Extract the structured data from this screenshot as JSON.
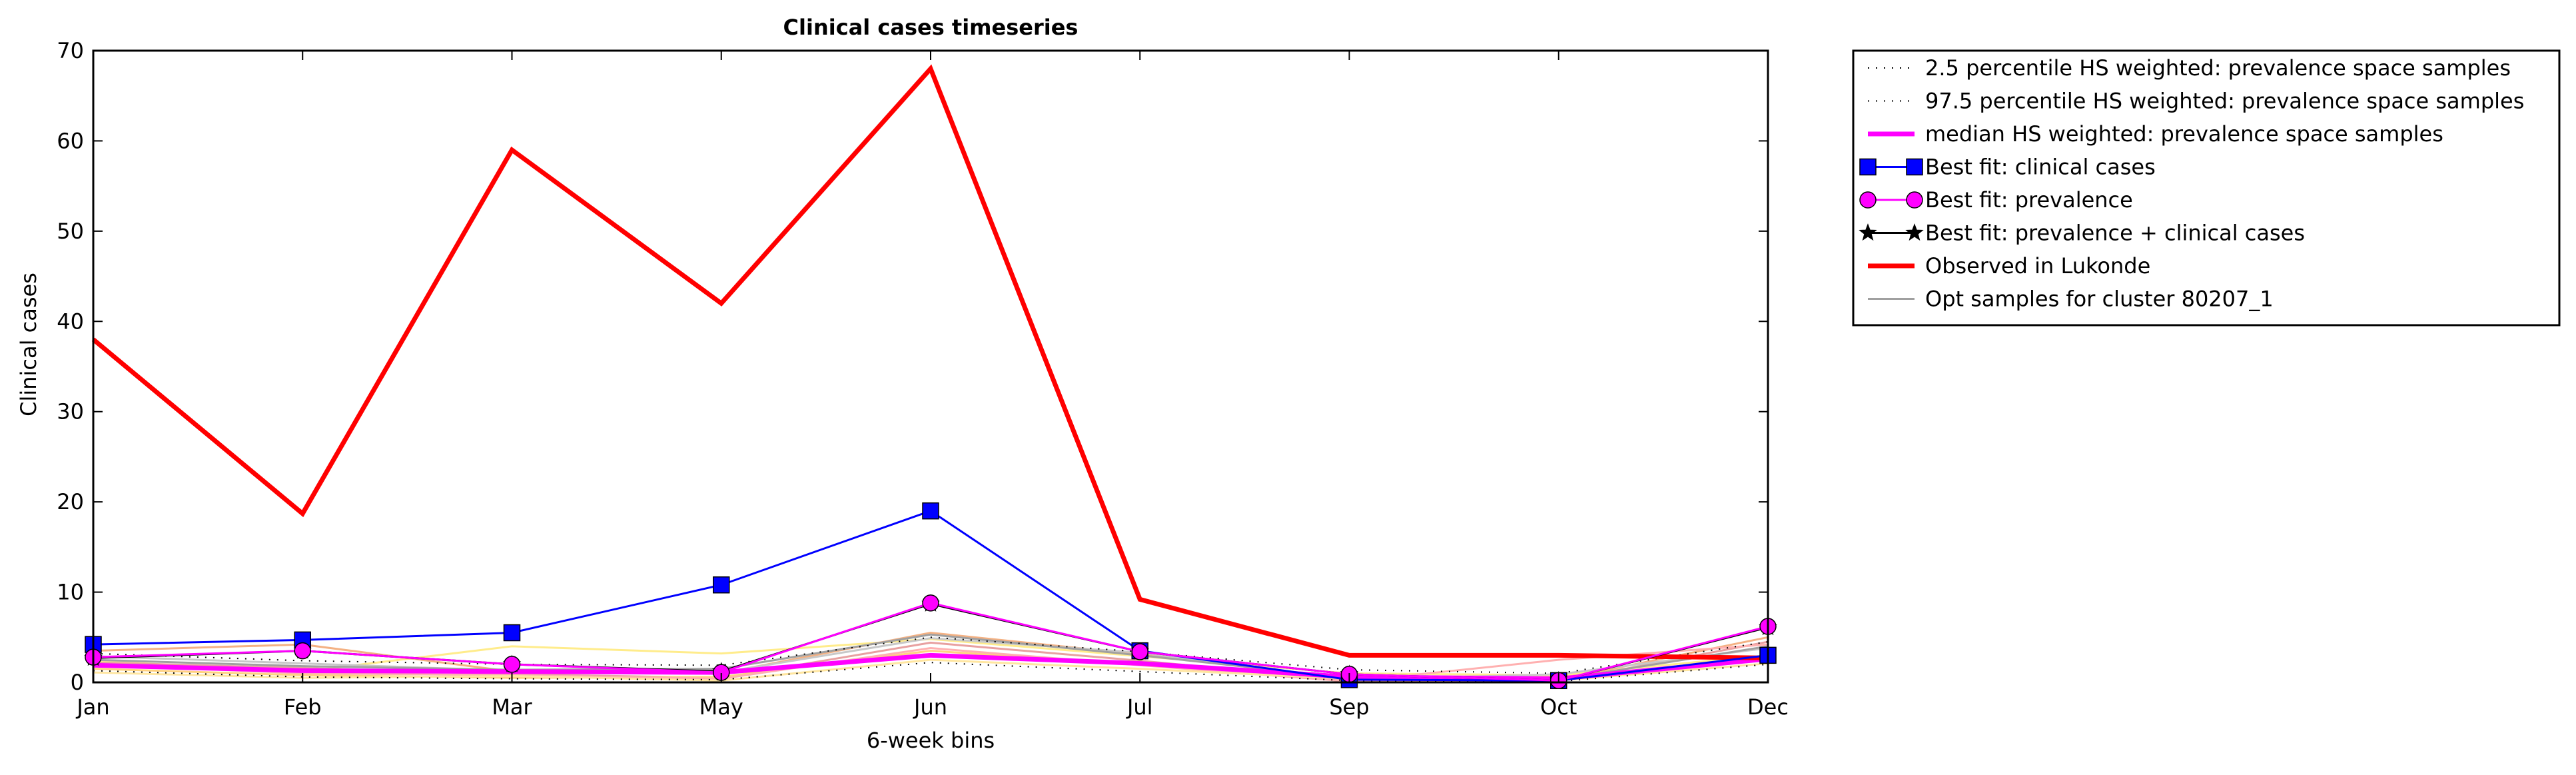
{
  "chart_data": {
    "type": "line",
    "title": "Clinical cases timeseries",
    "xlabel": "6-week bins",
    "ylabel": "Clinical cases",
    "categories": [
      "Jan",
      "Feb",
      "Mar",
      "May",
      "Jun",
      "Jul",
      "Sep",
      "Oct",
      "Dec"
    ],
    "ylim": [
      0,
      70
    ],
    "yticks": [
      "0",
      "10",
      "20",
      "30",
      "40",
      "50",
      "60",
      "70"
    ],
    "grid": false,
    "legend_position": "outside-top-right",
    "legend": [
      {
        "label": "2.5 percentile HS weighted: prevalence space samples"
      },
      {
        "label": "97.5 percentile HS weighted: prevalence space samples"
      },
      {
        "label": "median HS weighted: prevalence space samples"
      },
      {
        "label": "Best fit: clinical cases"
      },
      {
        "label": "Best fit: prevalence"
      },
      {
        "label": "Best fit: prevalence + clinical cases"
      },
      {
        "label": "Observed in Lukonde"
      },
      {
        "label": "Opt samples for cluster 80207_1"
      }
    ],
    "series": [
      {
        "name": "Observed in Lukonde",
        "color": "#ff0000",
        "style": "thick-line",
        "values": [
          38,
          18.7,
          59,
          42,
          68,
          9.2,
          3,
          3,
          2.7
        ]
      },
      {
        "name": "Best fit: clinical cases",
        "color": "#0000ff",
        "marker": "square",
        "values": [
          4.2,
          4.7,
          5.5,
          10.8,
          19,
          3.5,
          0.3,
          0.2,
          3
        ]
      },
      {
        "name": "Best fit: prevalence",
        "color": "#ff00ff",
        "marker": "circle",
        "values": [
          2.8,
          3.5,
          2,
          1.1,
          8.8,
          3.4,
          0.9,
          0.2,
          6.2
        ]
      },
      {
        "name": "Best fit: prevalence + clinical cases",
        "color": "#000000",
        "marker": "star",
        "values": [
          2.7,
          3.5,
          2,
          1.2,
          8.7,
          3.4,
          0.9,
          0.2,
          6.1
        ]
      },
      {
        "name": "median HS weighted: prevalence space samples",
        "color": "#ff00ff",
        "style": "thick-line",
        "values": [
          1.9,
          1.3,
          1.2,
          1.1,
          3,
          2.1,
          0.6,
          0.4,
          2.6
        ]
      },
      {
        "name": "2.5 percentile HS weighted: prevalence space samples",
        "color": "#000000",
        "style": "dotted",
        "values": [
          1.3,
          0.6,
          0.4,
          0.3,
          2.2,
          1.2,
          0.2,
          0.1,
          2
        ]
      },
      {
        "name": "97.5 percentile HS weighted: prevalence space samples",
        "color": "#000000",
        "style": "dotted",
        "values": [
          3.2,
          2.4,
          2,
          1.9,
          5,
          3.4,
          1.4,
          1,
          4.5
        ]
      },
      {
        "name": "Opt samples for cluster 80207_1",
        "color": "#a0a0a0",
        "values": [
          2.5,
          1.8,
          1.4,
          1.5,
          5.3,
          3,
          0.5,
          0.3,
          4
        ]
      }
    ],
    "sample_lines": [
      {
        "color": "#ffec8b",
        "values": [
          2.4,
          1.2,
          4,
          3.2,
          4.8,
          2.9,
          1,
          0.8,
          3
        ]
      },
      {
        "color": "#f4b183",
        "values": [
          3.5,
          4.2,
          1.2,
          1,
          5.5,
          3.1,
          0.4,
          0.3,
          5
        ]
      },
      {
        "color": "#e8a0a0",
        "values": [
          2.2,
          1.6,
          0.9,
          0.5,
          4.4,
          2.4,
          0.2,
          0.1,
          4.5
        ]
      },
      {
        "color": "#ffd27f",
        "values": [
          1.5,
          0.8,
          0.5,
          0.6,
          3.5,
          2,
          0.5,
          0.6,
          2.5
        ]
      },
      {
        "color": "#c8c8c8",
        "values": [
          2.9,
          2.1,
          1.3,
          1.1,
          4.9,
          3.3,
          0.3,
          0.9,
          3.8
        ]
      },
      {
        "color": "#ffb0b0",
        "values": [
          2,
          1,
          0.8,
          0.4,
          3.8,
          1.9,
          0.1,
          2.5,
          4.2
        ]
      },
      {
        "color": "#ffe6a0",
        "values": [
          1.1,
          0.5,
          0.7,
          0.2,
          2.5,
          1.5,
          0.4,
          0.2,
          2.1
        ]
      }
    ]
  }
}
